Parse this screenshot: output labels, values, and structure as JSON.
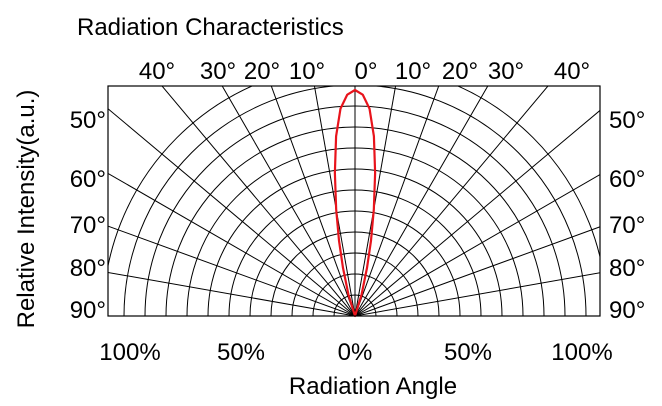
{
  "chart_data": {
    "type": "polar",
    "title": "Radiation Characteristics",
    "xlabel": "Radiation Angle",
    "ylabel": "Relative Intensity(a.u.)",
    "top_angle_labels": [
      "40°",
      "30°",
      "20°",
      "10°",
      "0°",
      "10°",
      "20°",
      "30°",
      "40°"
    ],
    "left_angle_labels": [
      "50°",
      "60°",
      "70°",
      "80°",
      "90°"
    ],
    "right_angle_labels": [
      "50°",
      "60°",
      "70°",
      "80°",
      "90°"
    ],
    "x_tick_labels": [
      "100%",
      "50%",
      "0%",
      "50%",
      "100%"
    ],
    "series": [
      {
        "color": "#e8141c",
        "angle_deg": [
          -90,
          -20,
          -17,
          -14,
          -12,
          -10,
          -8,
          -6,
          -4,
          -2,
          0,
          2,
          4,
          6,
          8,
          10,
          12,
          14,
          17,
          20,
          90
        ],
        "relative_intensity": [
          0,
          0,
          0.1,
          0.22,
          0.34,
          0.48,
          0.64,
          0.8,
          0.92,
          0.98,
          1.0,
          0.98,
          0.92,
          0.8,
          0.64,
          0.48,
          0.34,
          0.22,
          0.1,
          0,
          0
        ]
      }
    ],
    "grid": true
  }
}
